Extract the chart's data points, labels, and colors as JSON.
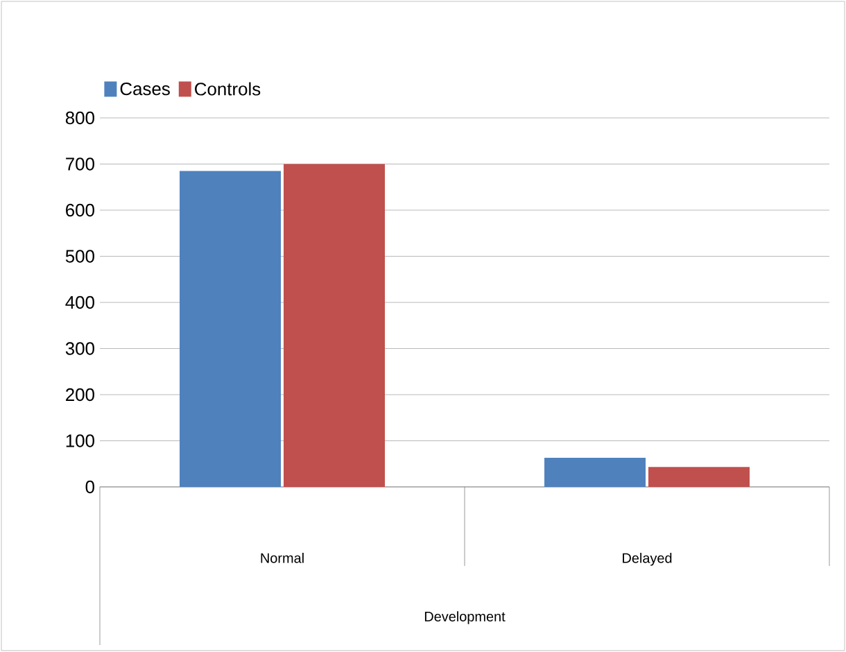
{
  "chart_data": {
    "type": "bar",
    "xlabel": "Development",
    "categories": [
      "Normal",
      "Delayed"
    ],
    "series": [
      {
        "name": "Cases",
        "color": "#4f81bd",
        "values": [
          685,
          63
        ]
      },
      {
        "name": "Controls",
        "color": "#c0504d",
        "values": [
          700,
          43
        ]
      }
    ],
    "ylim": [
      0,
      800
    ],
    "yticks": [
      0,
      100,
      200,
      300,
      400,
      500,
      600,
      700,
      800
    ],
    "grid": "y",
    "legend": "top left"
  }
}
